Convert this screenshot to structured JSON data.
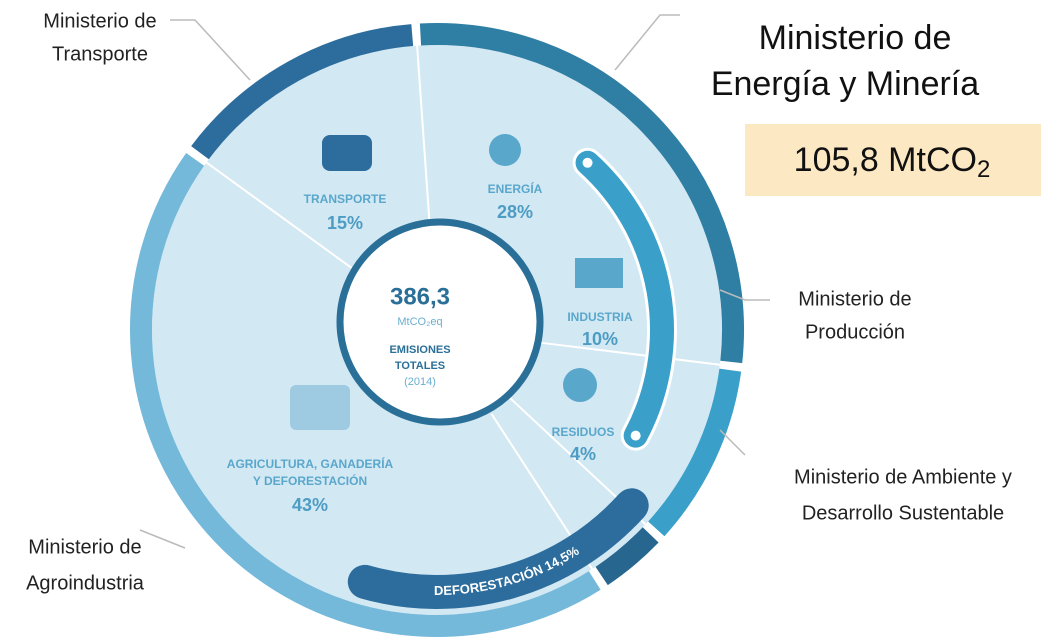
{
  "ministries": [
    {
      "lines": [
        "Ministerio de",
        "Transporte"
      ]
    },
    {
      "lines": [
        "Ministerio de",
        "Energía y Minería"
      ]
    },
    {
      "lines": [
        "Ministerio de",
        "Producción"
      ]
    },
    {
      "lines": [
        "Ministerio de Ambiente y",
        "Desarrollo Sustentable"
      ]
    },
    {
      "lines": [
        "Ministerio de",
        "Agroindustria"
      ]
    }
  ],
  "highlight": {
    "text": "105,8 MtCO",
    "subscript": "2"
  },
  "sectors": [
    {
      "name": [
        "TRANSPORTE"
      ],
      "percent": "15%"
    },
    {
      "name": [
        "ENERGÍA"
      ],
      "percent": "28%"
    },
    {
      "name": [
        "INDUSTRIA"
      ],
      "percent": "10%"
    },
    {
      "name": [
        "RESIDUOS"
      ],
      "percent": "4%"
    },
    {
      "name": [
        "AGRICULTURA, GANADERÍA",
        "Y DEFORESTACIÓN"
      ],
      "percent": "43%"
    }
  ],
  "center": {
    "total": "386,3",
    "unit": "MtCO₂eq",
    "caption": [
      "EMISIONES",
      "TOTALES"
    ],
    "year": "(2014)"
  },
  "band": "DEFORESTACIÓN 14,5%"
}
